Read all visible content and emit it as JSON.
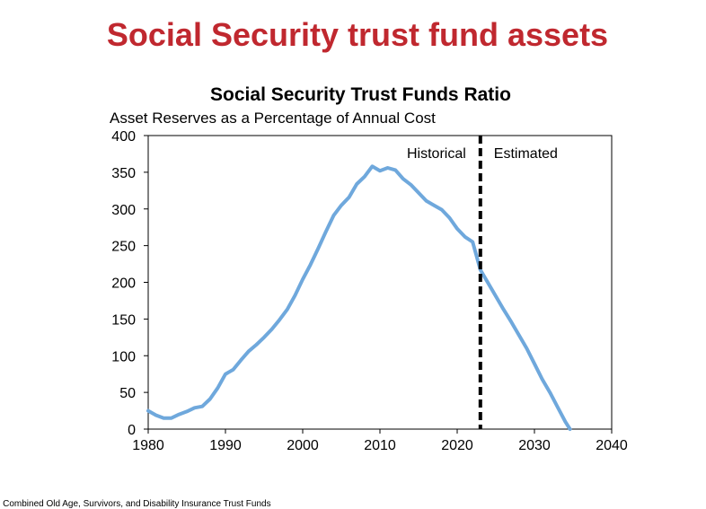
{
  "slide": {
    "title": "Social Security trust fund assets",
    "source_note": "e: Combined Old Age, Survivors, and Disability Insurance Trust Funds"
  },
  "chart_data": {
    "type": "line",
    "title": "Social Security Trust Funds Ratio",
    "subtitle": "Asset Reserves as a Percentage of Annual Cost",
    "xlabel": "",
    "ylabel": "",
    "xlim": [
      1980,
      2040
    ],
    "ylim": [
      0,
      400
    ],
    "xticks": [
      1980,
      1990,
      2000,
      2010,
      2020,
      2030,
      2040
    ],
    "yticks": [
      0,
      50,
      100,
      150,
      200,
      250,
      300,
      350,
      400
    ],
    "grid": false,
    "line_color": "#6fa8dc",
    "divider": {
      "x": 2023,
      "left_label": "Historical",
      "right_label": "Estimated",
      "color": "#000000"
    },
    "series": [
      {
        "x": [
          1980,
          1981,
          1982,
          1983,
          1984,
          1985,
          1986,
          1987,
          1988,
          1989,
          1990,
          1991,
          1992,
          1993,
          1994,
          1995,
          1996,
          1997,
          1998,
          1999,
          2000,
          2001,
          2002,
          2003,
          2004,
          2005,
          2006,
          2007,
          2008,
          2009,
          2010,
          2011,
          2012,
          2013,
          2014,
          2015,
          2016,
          2017,
          2018,
          2019,
          2020,
          2021,
          2022,
          2023,
          2024,
          2025,
          2026,
          2027,
          2028,
          2029,
          2030,
          2031,
          2032,
          2033,
          2034,
          2034.6
        ],
        "values": [
          25,
          19,
          15,
          15,
          20,
          24,
          29,
          31,
          41,
          56,
          75,
          81,
          94,
          106,
          115,
          125,
          136,
          149,
          163,
          182,
          204,
          224,
          246,
          269,
          291,
          305,
          316,
          334,
          344,
          358,
          352,
          356,
          353,
          341,
          333,
          322,
          311,
          305,
          299,
          288,
          273,
          262,
          255,
          217,
          199,
          181,
          163,
          146,
          128,
          110,
          89,
          68,
          50,
          30,
          10,
          0
        ]
      }
    ]
  }
}
